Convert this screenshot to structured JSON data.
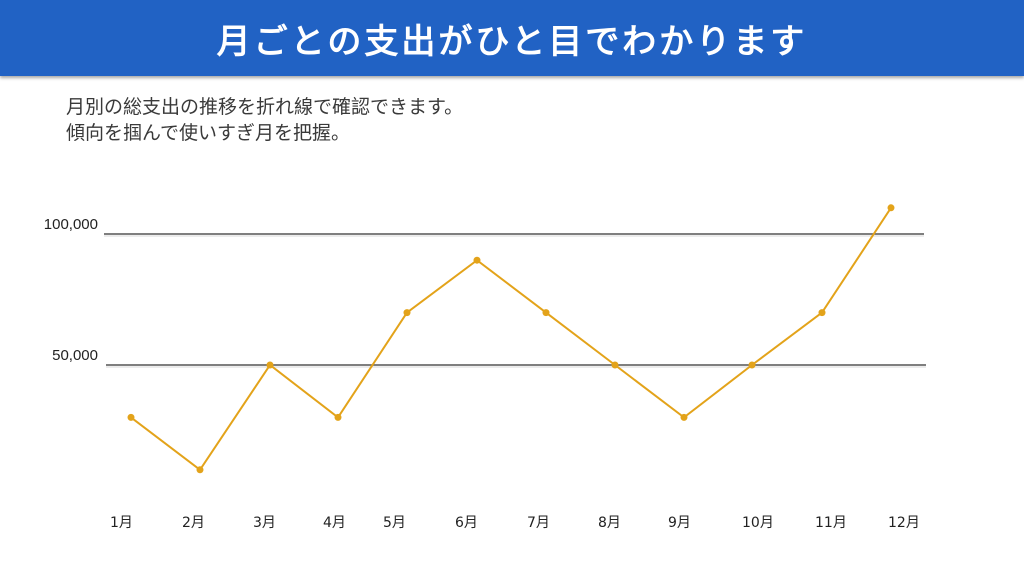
{
  "header": {
    "title": "月ごとの支出がひと目でわかります"
  },
  "description": {
    "line1": "月別の総支出の推移を折れ線で確認できます。",
    "line2": "傾向を掴んで使いすぎ月を把握。"
  },
  "colors": {
    "banner": "#2162c4",
    "line": "#e3a31a",
    "grid": "#555555"
  },
  "chart_data": {
    "type": "line",
    "title": "",
    "xlabel": "",
    "ylabel": "",
    "categories": [
      "1月",
      "2月",
      "3月",
      "4月",
      "5月",
      "6月",
      "7月",
      "8月",
      "9月",
      "10月",
      "11月",
      "12月"
    ],
    "series": [
      {
        "name": "総支出",
        "values": [
          30000,
          10000,
          50000,
          30000,
          70000,
          90000,
          70000,
          50000,
          30000,
          50000,
          70000,
          110000
        ]
      }
    ],
    "yticks": [
      50000,
      100000
    ],
    "ytick_labels": [
      "50,000",
      "100,000"
    ],
    "ylim": [
      0,
      110000
    ],
    "grid": true,
    "legend": false
  }
}
